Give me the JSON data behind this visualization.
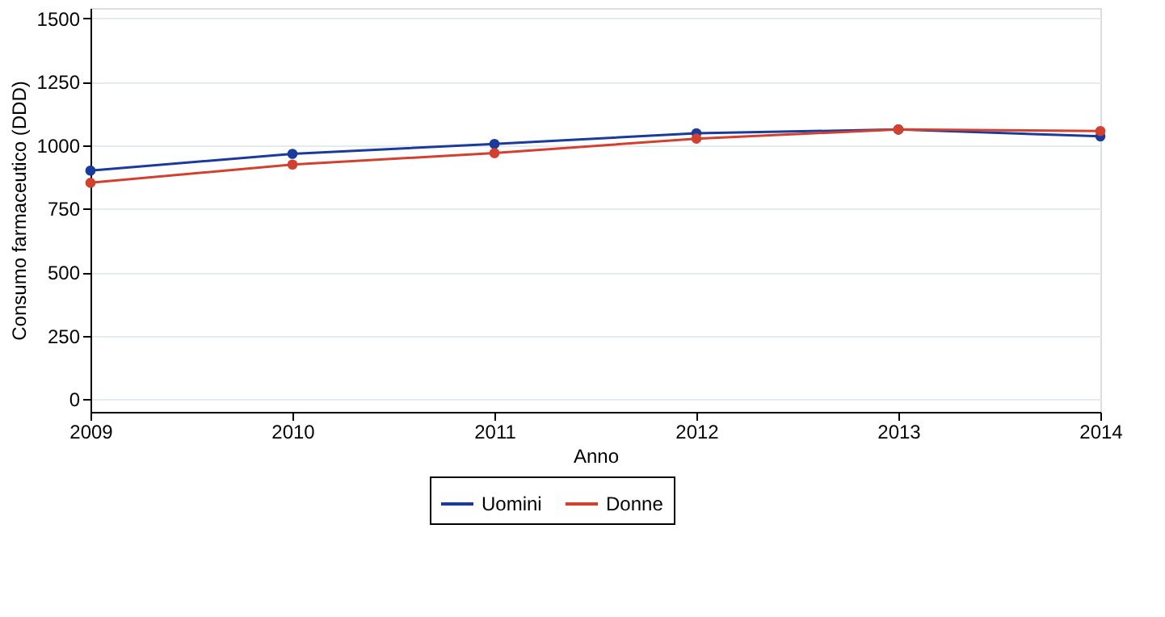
{
  "chart_data": {
    "type": "line",
    "xlabel": "Anno",
    "ylabel": "Consumo farmaceutico (DDD)",
    "x": [
      2009,
      2010,
      2011,
      2012,
      2013,
      2014
    ],
    "series": [
      {
        "name": "Uomini",
        "color": "#1a3a9c",
        "values": [
          900,
          966,
          1005,
          1047,
          1062,
          1035
        ]
      },
      {
        "name": "Donne",
        "color": "#d2402f",
        "values": [
          852,
          924,
          969,
          1026,
          1062,
          1056
        ]
      }
    ],
    "xlim": [
      2009,
      2014
    ],
    "xticks": [
      2009,
      2010,
      2011,
      2012,
      2013,
      2014
    ],
    "ylim": [
      -50,
      1540
    ],
    "yticks": [
      0,
      250,
      500,
      750,
      1000,
      1250,
      1500
    ],
    "grid": "y",
    "legend": "bottom",
    "marker": "circle",
    "line_style": "solid"
  }
}
